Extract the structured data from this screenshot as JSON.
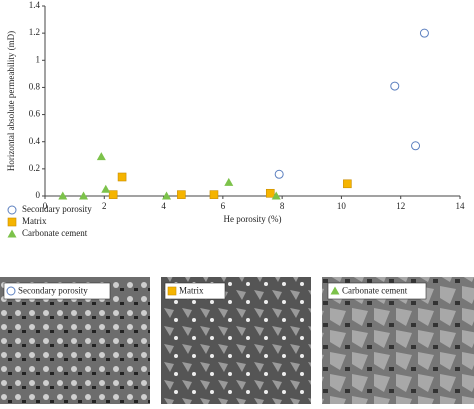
{
  "chart_data": {
    "type": "scatter",
    "x_label": "He porosity (%)",
    "y_label": "Horizontal absolute permeability (mD)",
    "xlim": [
      0,
      14
    ],
    "xticks": [
      0,
      2,
      4,
      6,
      8,
      10,
      12,
      14
    ],
    "ylim": [
      0,
      1.4
    ],
    "yticks": [
      0,
      0.2,
      0.4,
      0.6,
      0.8,
      1,
      1.2,
      1.4
    ],
    "series": [
      {
        "name": "Secondary porosity",
        "marker": "circle",
        "color": "#5b7fbf",
        "x": [
          7.9,
          11.8,
          12.5,
          12.8
        ],
        "values": [
          0.16,
          0.81,
          0.37,
          1.2
        ]
      },
      {
        "name": "Matrix",
        "marker": "square",
        "color": "#f5b400",
        "x": [
          2.3,
          2.6,
          4.6,
          5.7,
          7.6,
          10.2
        ],
        "values": [
          0.01,
          0.14,
          0.01,
          0.01,
          0.02,
          0.09
        ]
      },
      {
        "name": "Carbonate cement",
        "marker": "triangle",
        "color": "#7cc24a",
        "x": [
          0.6,
          1.3,
          1.9,
          2.05,
          4.1,
          6.2,
          7.8
        ],
        "values": [
          0,
          0,
          0.29,
          0.05,
          0,
          0.1,
          0
        ]
      }
    ]
  }
}
